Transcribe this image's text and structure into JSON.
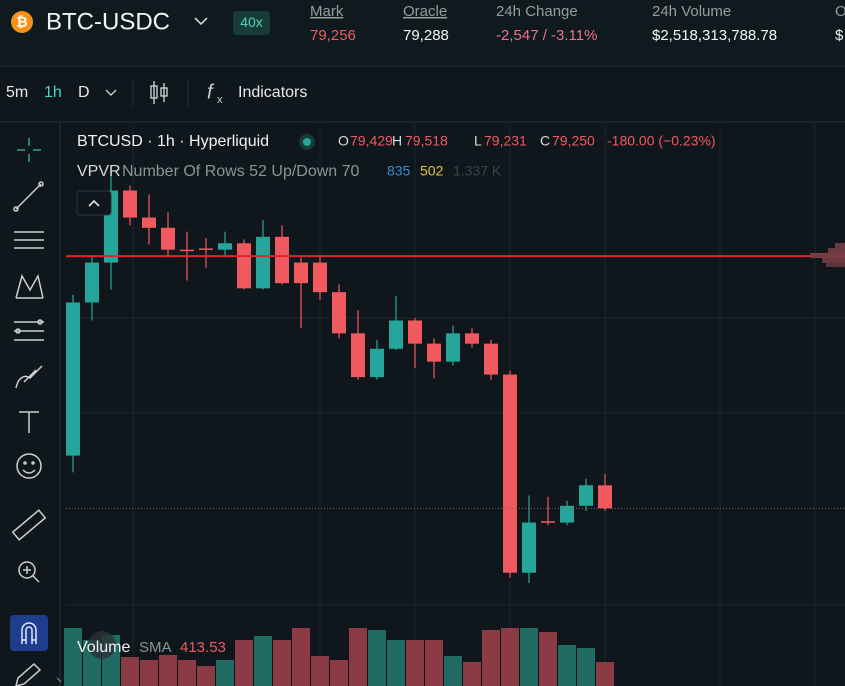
{
  "header": {
    "symbol": "BTC-USDC",
    "leverage": "40x",
    "stats": [
      {
        "label": "Mark",
        "value": "79,256"
      },
      {
        "label": "Oracle",
        "value": "79,288"
      },
      {
        "label": "24h Change",
        "value": "-2,547 / -3.11%"
      },
      {
        "label": "24h Volume",
        "value": "$2,518,313,788.78"
      },
      {
        "label": "O",
        "value": "$"
      }
    ]
  },
  "toolbar": {
    "intervals": [
      "5m",
      "1h",
      "D"
    ],
    "indicators": "Indicators"
  },
  "legend": {
    "title": "BTCUSD · 1h · Hyperliquid",
    "ohlc": [
      {
        "label": "O",
        "value": "79,429"
      },
      {
        "label": "H",
        "value": "79,518"
      },
      {
        "label": "L",
        "value": "79,231"
      },
      {
        "label": "C",
        "value": "79,250"
      }
    ],
    "change": "-180.00 (−0.23%)"
  },
  "vpvr": {
    "name": "VPVR",
    "settings": "Number Of Rows 52 Up/Down 70",
    "up": "835",
    "down": "502",
    "total": "1.337 K"
  },
  "volume_legend": {
    "name": "Volume",
    "sma_label": "SMA",
    "sma_value": "413.53"
  },
  "chart_data": {
    "type": "candlestick",
    "ylim": [
      77870,
      82190
    ],
    "up_color": "#26a69a",
    "down_color": "#f05a5f",
    "price_line": 81210,
    "price_line_color": "#e0262a",
    "candles": {
      "open": [
        79660,
        80850,
        81160,
        81720,
        81510,
        81430,
        81260,
        81270,
        81260,
        81310,
        80960,
        81360,
        81160,
        81160,
        80930,
        80610,
        80270,
        80490,
        80710,
        80530,
        80390,
        80610,
        80530,
        80290,
        78750,
        79150,
        79140,
        79270,
        79429
      ],
      "high": [
        80910,
        81220,
        81840,
        81760,
        81690,
        81550,
        81400,
        81350,
        81400,
        81340,
        81490,
        81450,
        81200,
        81200,
        80990,
        80790,
        80560,
        80900,
        80730,
        80570,
        80670,
        80650,
        80560,
        80320,
        79350,
        79340,
        79310,
        79480,
        79518
      ],
      "low": [
        79530,
        80710,
        80950,
        81450,
        81300,
        81200,
        81020,
        81120,
        81200,
        80950,
        80950,
        80990,
        80650,
        80870,
        80570,
        80250,
        80250,
        80480,
        80340,
        80260,
        80360,
        80500,
        80250,
        78710,
        78670,
        79120,
        79120,
        79230,
        79231
      ],
      "close": [
        80850,
        81160,
        81720,
        81510,
        81430,
        81260,
        81250,
        81260,
        81310,
        80960,
        81360,
        81000,
        81000,
        80930,
        80610,
        80270,
        80490,
        80710,
        80530,
        80390,
        80610,
        80530,
        80290,
        78750,
        79140,
        79140,
        79270,
        79430,
        79250
      ]
    },
    "volume": [
      720,
      600,
      650,
      430,
      400,
      450,
      400,
      340,
      400,
      600,
      640,
      600,
      720,
      440,
      400,
      720,
      700,
      600,
      600,
      600,
      440,
      380,
      700,
      720,
      720,
      680,
      550,
      520,
      380
    ],
    "volume_ylim": [
      0,
      1000
    ],
    "volume_up_color": "#1f6b63",
    "volume_down_color": "#8a3b43"
  }
}
